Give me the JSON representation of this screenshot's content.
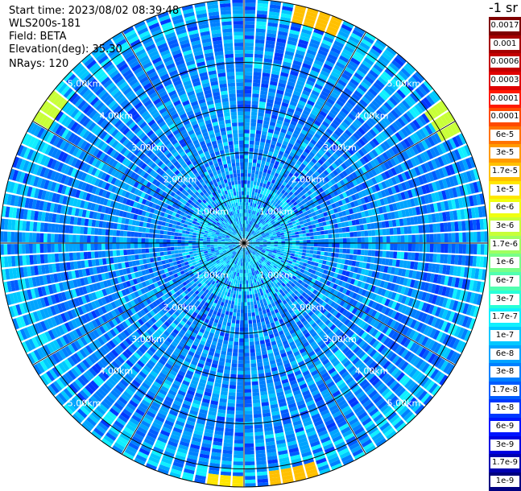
{
  "header": {
    "start_time": "Start time: 2023/08/02 08:39:48",
    "device": "WLS200s-181",
    "field": "Field: BETA",
    "elevation": "Elevation(deg): 35.30",
    "nrays": "NRays: 120"
  },
  "colorbar": {
    "unit_fragment": "-1 sr",
    "levels": [
      {
        "label": "0.0017",
        "color": "#7f0000"
      },
      {
        "label": "0.001",
        "color": "#a50000"
      },
      {
        "label": "0.0006",
        "color": "#c40000"
      },
      {
        "label": "0.0003",
        "color": "#e00000"
      },
      {
        "label": "0.00017",
        "color": "#ff1a00"
      },
      {
        "label": "0.0001",
        "color": "#ff4a00"
      },
      {
        "label": "6e-5",
        "color": "#ff7300"
      },
      {
        "label": "3e-5",
        "color": "#ff9a00"
      },
      {
        "label": "1.7e-5",
        "color": "#ffc000"
      },
      {
        "label": "1e-5",
        "color": "#ffe600"
      },
      {
        "label": "6e-6",
        "color": "#f0ff10"
      },
      {
        "label": "3e-6",
        "color": "#c8ff38"
      },
      {
        "label": "1.7e-6",
        "color": "#a0ff60"
      },
      {
        "label": "1e-6",
        "color": "#78ff88"
      },
      {
        "label": "6e-7",
        "color": "#50ffb0"
      },
      {
        "label": "3e-7",
        "color": "#28ffd8"
      },
      {
        "label": "1.7e-7",
        "color": "#10f0ff"
      },
      {
        "label": "1e-7",
        "color": "#00c8ff"
      },
      {
        "label": "6e-8",
        "color": "#00a4ff"
      },
      {
        "label": "3e-8",
        "color": "#0080ff"
      },
      {
        "label": "1.7e-8",
        "color": "#005cff"
      },
      {
        "label": "1e-8",
        "color": "#0038ff"
      },
      {
        "label": "6e-9",
        "color": "#0014ff"
      },
      {
        "label": "3e-9",
        "color": "#0000e0"
      },
      {
        "label": "1.7e-9",
        "color": "#0000b0"
      },
      {
        "label": "1e-9",
        "color": "#000080"
      }
    ]
  },
  "chart_data": {
    "type": "heatmap",
    "projection": "polar-ppi",
    "title": "",
    "n_rays": 120,
    "max_range_km": 5.4,
    "range_ring_labels": [
      {
        "range_km": 1,
        "label": "1.00km"
      },
      {
        "range_km": 2,
        "label": "2.00km"
      },
      {
        "range_km": 3,
        "label": "3.00km"
      },
      {
        "range_km": 4,
        "label": "4.00km"
      },
      {
        "range_km": 5,
        "label": "5.00km"
      }
    ],
    "radial_spokes_deg": [
      0,
      30,
      60,
      90,
      120,
      150,
      180,
      210,
      240,
      270,
      300,
      330
    ],
    "dominant_level": "3e-8",
    "hotspots": [
      {
        "azimuth_deg": 18,
        "range_km": 5.2,
        "level": "1.7e-5"
      },
      {
        "azimuth_deg": 58,
        "range_km": 5.1,
        "level": "3e-6"
      },
      {
        "azimuth_deg": 305,
        "range_km": 5.2,
        "level": "3e-6"
      },
      {
        "azimuth_deg": 168,
        "range_km": 5.3,
        "level": "1.7e-5"
      },
      {
        "azimuth_deg": 185,
        "range_km": 5.35,
        "level": "1e-5"
      }
    ],
    "grid": true
  }
}
